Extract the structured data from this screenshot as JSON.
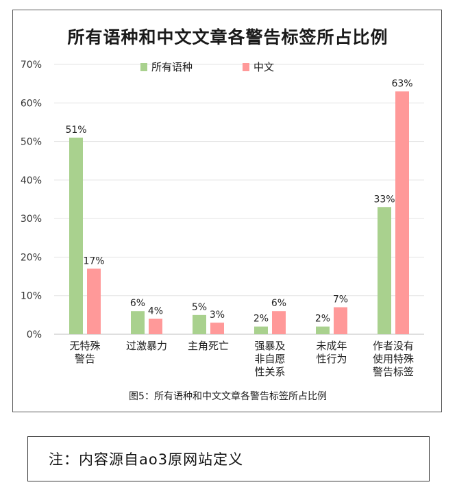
{
  "chart_data": {
    "type": "bar",
    "title": "所有语种和中文文章各警告标签所占比例",
    "categories": [
      [
        "无特殊",
        "警告"
      ],
      [
        "过激暴力"
      ],
      [
        "主角死亡"
      ],
      [
        "强暴及",
        "非自愿",
        "性关系"
      ],
      [
        "未成年",
        "性行为"
      ],
      [
        "作者没有",
        "使用特殊",
        "警告标签"
      ]
    ],
    "series": [
      {
        "name": "所有语种",
        "color": "#a9d18e",
        "values": [
          51,
          6,
          5,
          2,
          2,
          33
        ],
        "labels": [
          "51%",
          "6%",
          "5%",
          "2%",
          "2%",
          "33%"
        ]
      },
      {
        "name": "中文",
        "color": "#ff9999",
        "values": [
          17,
          4,
          3,
          6,
          7,
          63
        ],
        "labels": [
          "17%",
          "4%",
          "3%",
          "6%",
          "7%",
          "63%"
        ]
      }
    ],
    "ylim": [
      0,
      70
    ],
    "yticks": [
      "0%",
      "10%",
      "20%",
      "30%",
      "40%",
      "50%",
      "60%",
      "70%"
    ],
    "grid": true,
    "legend_position": "top"
  },
  "caption": "图5：所有语种和中文文章各警告标签所占比例",
  "note": "注：内容源自ao3原网站定义"
}
